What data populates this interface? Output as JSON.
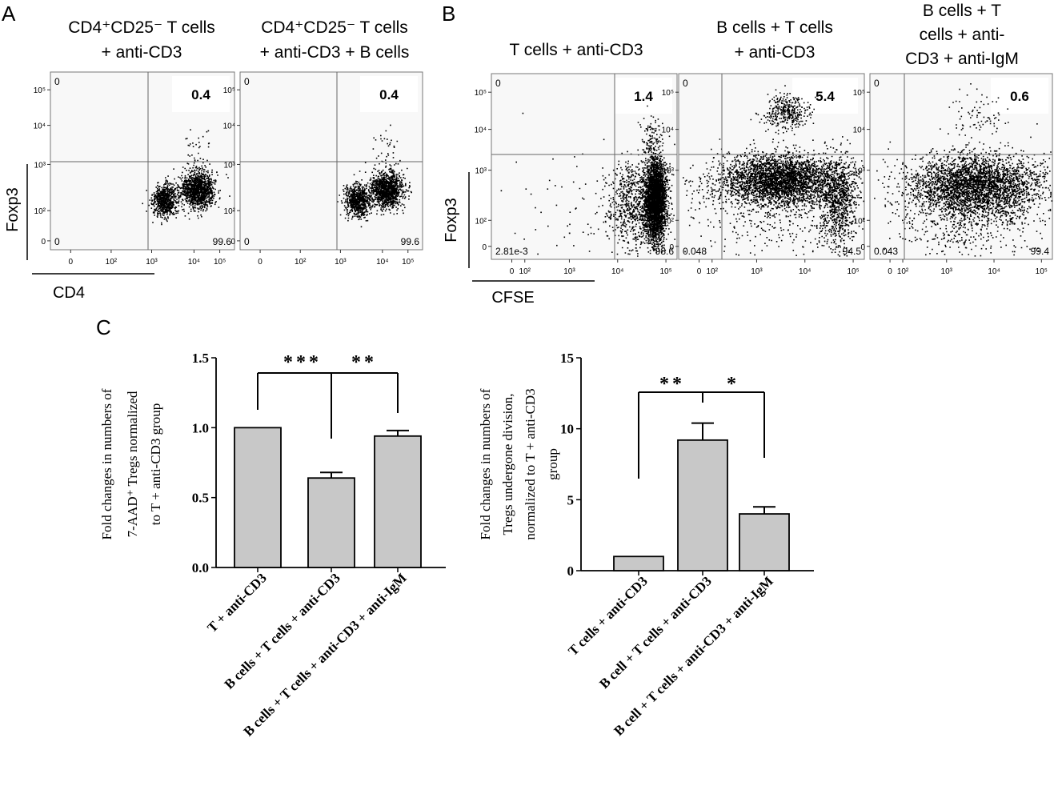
{
  "panel_letters": {
    "a": "A",
    "b": "B",
    "c": "C"
  },
  "flow_panels": [
    {
      "title_lines": [
        "CD4⁺CD25⁻ T cells",
        "+ anti-CD3"
      ],
      "ur_value": "0.4",
      "ul_value": "0",
      "ll_value": "0",
      "lr_value": "99.6",
      "y_ticks": [
        "10⁵",
        "10⁴",
        "10³",
        "10²",
        "0"
      ],
      "x_ticks": [
        "0",
        "10²",
        "10³",
        "10⁴",
        "10⁵"
      ]
    },
    {
      "title_lines": [
        "CD4⁺CD25⁻ T cells",
        "+ anti-CD3 + B cells"
      ],
      "ur_value": "0.4",
      "ul_value": "0",
      "ll_value": "0",
      "lr_value": "99.6",
      "y_ticks": [
        "10⁵",
        "10⁴",
        "10³",
        "10²",
        "0"
      ],
      "x_ticks": [
        "0",
        "10²",
        "10³",
        "10⁴",
        "10⁵"
      ]
    },
    {
      "title_lines": [
        "T cells + anti-CD3"
      ],
      "ur_value": "1.4",
      "ul_value": "0",
      "ll_value": "2.81e-3",
      "lr_value": "98.6",
      "y_ticks": [
        "10⁵",
        "10⁴",
        "10³",
        "10²",
        "0"
      ],
      "x_ticks": [
        "0",
        "10²",
        "10³",
        "10⁴",
        "10⁵"
      ]
    },
    {
      "title_lines": [
        "B cells + T cells",
        "+ anti-CD3"
      ],
      "ur_value": "5.4",
      "ul_value": "0",
      "ll_value": "0.048",
      "lr_value": "94.5",
      "y_ticks": [
        "10⁵",
        "10⁴",
        "10³",
        "10²",
        "0"
      ],
      "x_ticks": [
        "0",
        "10²",
        "10³",
        "10⁴",
        "10⁵"
      ]
    },
    {
      "title_lines": [
        "B cells + T",
        "cells + anti-",
        "CD3 + anti-IgM"
      ],
      "ur_value": "0.6",
      "ul_value": "0",
      "ll_value": "0.043",
      "lr_value": "99.4",
      "y_ticks": [
        "10⁵",
        "10⁴",
        "10³",
        "10²",
        "0"
      ],
      "x_ticks": [
        "0",
        "10²",
        "10³",
        "10⁴",
        "10⁵"
      ]
    }
  ],
  "flow_axes": {
    "a_ylabel": "Foxp3",
    "a_xlabel": "CD4",
    "b_ylabel": "Foxp3",
    "b_xlabel": "CFSE"
  },
  "chart_data": [
    {
      "type": "bar",
      "title": "",
      "ylabel_lines": [
        "Fold changes in numbers of",
        "7-AAD⁺ Tregs normalized",
        "to T + anti-CD3 group"
      ],
      "categories": [
        "T + anti-CD3",
        "B cells + T cells + anti-CD3",
        "B cells + T cells + anti-CD3 + anti-IgM"
      ],
      "values": [
        1.0,
        0.64,
        0.94
      ],
      "errors": [
        0,
        0.04,
        0.04
      ],
      "ylim": [
        0,
        1.5
      ],
      "yticks": [
        "0.0",
        "0.5",
        "1.0",
        "1.5"
      ],
      "ytick_values": [
        0,
        0.5,
        1.0,
        1.5
      ],
      "bar_color": "#c8c8c8",
      "significance": [
        "***",
        "**"
      ],
      "grid": false
    },
    {
      "type": "bar",
      "title": "",
      "ylabel_lines": [
        "Fold changes in numbers of",
        "Tregs undergone division,",
        "normalized to T + anti-CD3",
        "group"
      ],
      "categories": [
        "T cells + anti-CD3",
        "B cell + T cells + anti-CD3",
        "B cell + T cells + anti-CD3 + anti-IgM"
      ],
      "values": [
        1.0,
        9.2,
        4.0
      ],
      "errors": [
        0,
        1.2,
        0.5
      ],
      "ylim": [
        0,
        15
      ],
      "yticks": [
        "0",
        "5",
        "10",
        "15"
      ],
      "ytick_values": [
        0,
        5,
        10,
        15
      ],
      "bar_color": "#c8c8c8",
      "significance": [
        "**",
        "*"
      ],
      "grid": false
    }
  ]
}
